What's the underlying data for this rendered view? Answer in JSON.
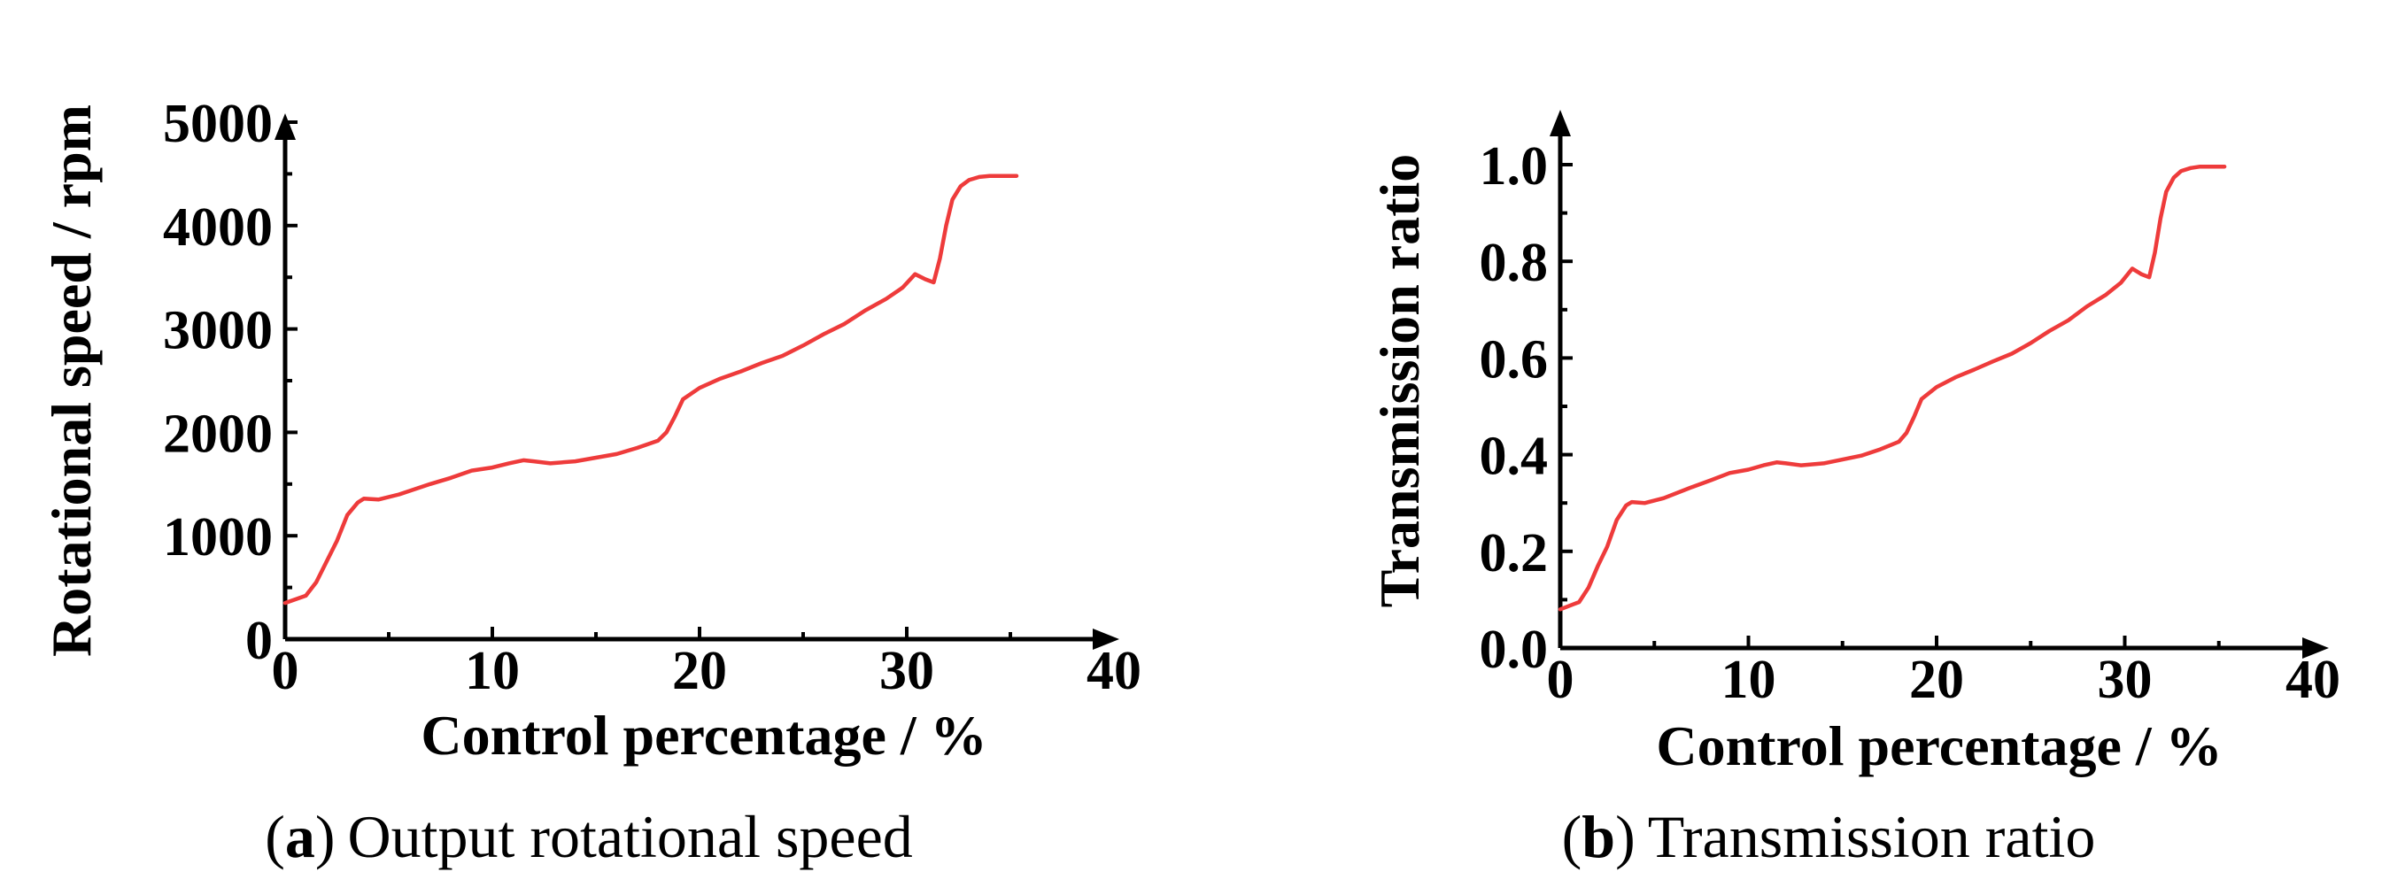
{
  "colors": {
    "series": "#ee3b3b",
    "axis": "#000000"
  },
  "chart_data": [
    {
      "type": "line",
      "panel": "a",
      "caption_letter": "a",
      "caption_open": "(",
      "caption_close": ")",
      "caption_text": "Output rotational speed",
      "xlabel": "Control percentage / %",
      "ylabel": "Rotational speed / rpm",
      "xlim": [
        0,
        40
      ],
      "ylim": [
        0,
        5000
      ],
      "xticks": [
        0,
        10,
        20,
        30,
        40
      ],
      "yticks": [
        0,
        1000,
        2000,
        3000,
        4000,
        5000
      ],
      "series": [
        {
          "name": "Output rotational speed",
          "x": [
            0,
            1,
            1.5,
            2,
            2.5,
            3,
            3.5,
            3.8,
            4.5,
            5.5,
            7,
            8,
            9,
            10,
            10.8,
            11.5,
            12,
            12.8,
            14,
            16,
            17,
            18,
            18.4,
            18.8,
            19.2,
            20,
            21,
            22,
            23,
            24,
            25,
            26,
            27,
            28,
            29,
            29.8,
            30.4,
            30.9,
            31.3,
            31.6,
            31.9,
            32.2,
            32.6,
            33,
            33.5,
            34,
            35.3
          ],
          "y": [
            350,
            420,
            550,
            750,
            950,
            1200,
            1320,
            1360,
            1350,
            1400,
            1500,
            1560,
            1630,
            1660,
            1700,
            1730,
            1720,
            1700,
            1720,
            1790,
            1850,
            1920,
            2000,
            2150,
            2320,
            2430,
            2520,
            2590,
            2670,
            2740,
            2840,
            2950,
            3050,
            3180,
            3290,
            3400,
            3530,
            3480,
            3450,
            3680,
            4000,
            4250,
            4380,
            4440,
            4470,
            4480,
            4480
          ]
        }
      ]
    },
    {
      "type": "line",
      "panel": "b",
      "caption_letter": "b",
      "caption_open": "(",
      "caption_close": ")",
      "caption_text": "Transmission ratio",
      "xlabel": "Control percentage / %",
      "ylabel": "Transmission ratio",
      "xlim": [
        0,
        40
      ],
      "ylim": [
        0,
        1.0
      ],
      "xticks": [
        0,
        10,
        20,
        30,
        40
      ],
      "yticks": [
        "0.0",
        "0.2",
        "0.4",
        "0.6",
        "0.8",
        "1.0"
      ],
      "series": [
        {
          "name": "Transmission ratio",
          "x": [
            0,
            1,
            1.5,
            2,
            2.5,
            3,
            3.5,
            3.8,
            4.5,
            5.5,
            7,
            8,
            9,
            10,
            10.8,
            11.5,
            12,
            12.8,
            14,
            16,
            17,
            18,
            18.4,
            18.8,
            19.2,
            20,
            21,
            22,
            23,
            24,
            25,
            26,
            27,
            28,
            29,
            29.8,
            30.4,
            30.9,
            31.3,
            31.6,
            31.9,
            32.2,
            32.6,
            33,
            33.5,
            34,
            35.3
          ],
          "y": [
            0.08,
            0.095,
            0.125,
            0.17,
            0.21,
            0.265,
            0.295,
            0.302,
            0.3,
            0.31,
            0.333,
            0.347,
            0.362,
            0.369,
            0.378,
            0.384,
            0.382,
            0.378,
            0.382,
            0.398,
            0.411,
            0.427,
            0.445,
            0.478,
            0.515,
            0.54,
            0.56,
            0.576,
            0.593,
            0.609,
            0.631,
            0.656,
            0.678,
            0.707,
            0.731,
            0.756,
            0.785,
            0.773,
            0.767,
            0.818,
            0.889,
            0.944,
            0.973,
            0.987,
            0.993,
            0.996,
            0.996
          ]
        }
      ]
    }
  ]
}
